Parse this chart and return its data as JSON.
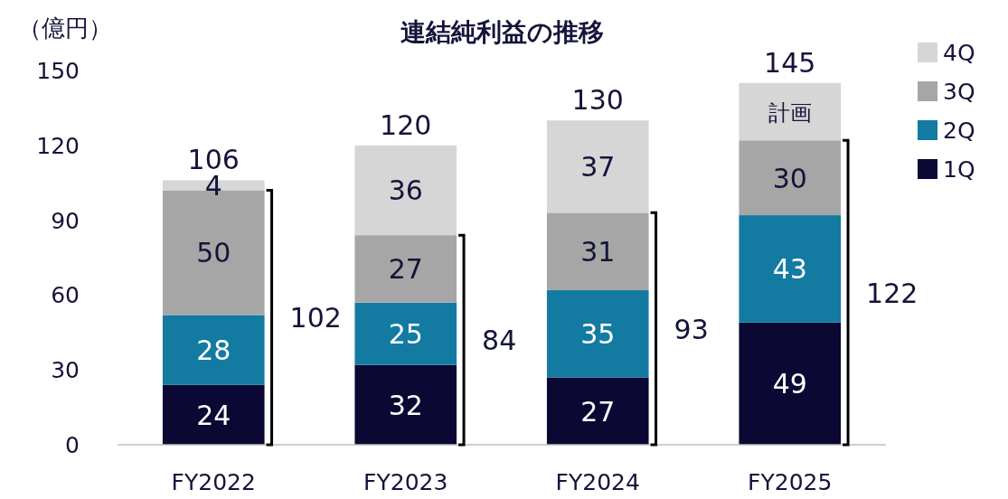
{
  "chart_data": {
    "type": "bar",
    "stacked": true,
    "title": "連結純利益の推移",
    "ylabel": "（億円）",
    "categories": [
      "FY2022",
      "FY2023",
      "FY2024",
      "FY2025"
    ],
    "series": [
      {
        "name": "1Q",
        "color": "#0b0833",
        "values": [
          24,
          32,
          27,
          49
        ]
      },
      {
        "name": "2Q",
        "color": "#137ba1",
        "values": [
          28,
          25,
          35,
          43
        ]
      },
      {
        "name": "3Q",
        "color": "#a6a6a6",
        "values": [
          50,
          27,
          31,
          30
        ]
      },
      {
        "name": "4Q",
        "color": "#d6d6d6",
        "values": [
          4,
          36,
          37,
          23
        ],
        "value_labels": [
          "4",
          "36",
          "37",
          "計画"
        ]
      }
    ],
    "data_labels": true,
    "totals": [
      "106",
      "120",
      "130",
      "145"
    ],
    "annotations": [
      "102",
      "84",
      "93",
      "122"
    ],
    "ylim": [
      0,
      150
    ],
    "yticks": [
      0,
      30,
      60,
      90,
      120,
      150
    ],
    "grid": false,
    "legend": "right"
  }
}
